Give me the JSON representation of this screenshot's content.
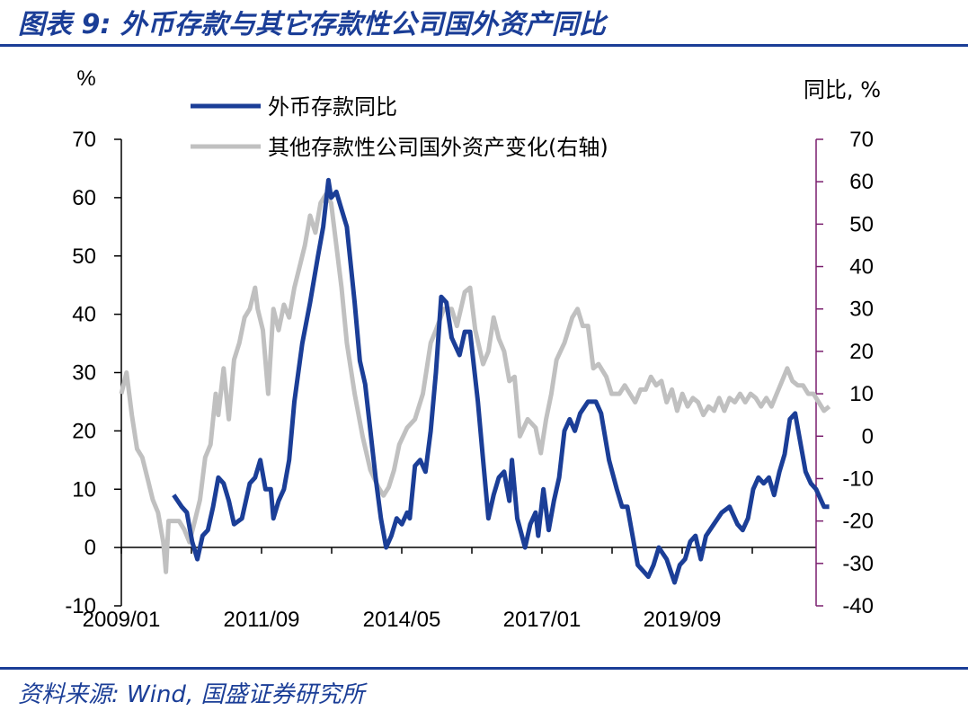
{
  "header": {
    "title": "图表 9: 外币存款与其它存款性公司国外资产同比"
  },
  "footer": {
    "source": "资料来源: Wind, 国盛证券研究所"
  },
  "chart_data": {
    "type": "line",
    "left_axis": {
      "unit_label": "%",
      "range": [
        -10,
        70
      ],
      "ticks": [
        "70",
        "60",
        "50",
        "40",
        "30",
        "20",
        "10",
        "0",
        "-10"
      ]
    },
    "right_axis": {
      "unit_label": "同比, %",
      "range": [
        -40,
        70
      ],
      "ticks": [
        "70",
        "60",
        "50",
        "40",
        "30",
        "20",
        "10",
        "0",
        "-10",
        "-20",
        "-30",
        "-40"
      ]
    },
    "x_ticks": [
      "2009/01",
      "2011/09",
      "2014/05",
      "2017/01",
      "2019/09"
    ],
    "x_range": [
      2009.0,
      2022.25
    ],
    "grid": false,
    "legend_position": "top",
    "series": [
      {
        "name": "外币存款同比",
        "axis": "left",
        "color": "#1b3e97",
        "points": [
          [
            2010.0,
            9
          ],
          [
            2010.15,
            7
          ],
          [
            2010.25,
            6
          ],
          [
            2010.35,
            1
          ],
          [
            2010.45,
            -2
          ],
          [
            2010.55,
            2
          ],
          [
            2010.65,
            3
          ],
          [
            2010.75,
            7
          ],
          [
            2010.85,
            12
          ],
          [
            2010.95,
            11
          ],
          [
            2011.05,
            8
          ],
          [
            2011.15,
            4
          ],
          [
            2011.3,
            5
          ],
          [
            2011.45,
            11
          ],
          [
            2011.55,
            12
          ],
          [
            2011.65,
            15
          ],
          [
            2011.75,
            10
          ],
          [
            2011.85,
            10
          ],
          [
            2011.9,
            5
          ],
          [
            2012.0,
            8
          ],
          [
            2012.1,
            10
          ],
          [
            2012.2,
            15
          ],
          [
            2012.3,
            25
          ],
          [
            2012.45,
            35
          ],
          [
            2012.6,
            42
          ],
          [
            2012.75,
            50
          ],
          [
            2012.85,
            55
          ],
          [
            2012.95,
            63
          ],
          [
            2013.0,
            60
          ],
          [
            2013.1,
            61
          ],
          [
            2013.2,
            58
          ],
          [
            2013.3,
            55
          ],
          [
            2013.45,
            42
          ],
          [
            2013.55,
            32
          ],
          [
            2013.65,
            28
          ],
          [
            2013.75,
            20
          ],
          [
            2013.85,
            12
          ],
          [
            2013.95,
            5
          ],
          [
            2014.05,
            0
          ],
          [
            2014.15,
            2
          ],
          [
            2014.25,
            5
          ],
          [
            2014.35,
            4
          ],
          [
            2014.45,
            6
          ],
          [
            2014.5,
            5
          ],
          [
            2014.6,
            14
          ],
          [
            2014.7,
            15
          ],
          [
            2014.8,
            13
          ],
          [
            2014.9,
            20
          ],
          [
            2015.0,
            30
          ],
          [
            2015.1,
            43
          ],
          [
            2015.2,
            42
          ],
          [
            2015.3,
            36
          ],
          [
            2015.45,
            33
          ],
          [
            2015.55,
            37
          ],
          [
            2015.65,
            37
          ],
          [
            2015.8,
            25
          ],
          [
            2015.9,
            15
          ],
          [
            2016.0,
            5
          ],
          [
            2016.1,
            9
          ],
          [
            2016.2,
            12
          ],
          [
            2016.3,
            13
          ],
          [
            2016.4,
            8
          ],
          [
            2016.45,
            15
          ],
          [
            2016.55,
            5
          ],
          [
            2016.7,
            0
          ],
          [
            2016.8,
            4
          ],
          [
            2016.9,
            6
          ],
          [
            2016.95,
            2
          ],
          [
            2017.05,
            10
          ],
          [
            2017.15,
            3
          ],
          [
            2017.25,
            8
          ],
          [
            2017.35,
            12
          ],
          [
            2017.45,
            20
          ],
          [
            2017.55,
            22
          ],
          [
            2017.65,
            20
          ],
          [
            2017.75,
            23
          ],
          [
            2017.9,
            25
          ],
          [
            2018.05,
            25
          ],
          [
            2018.15,
            23
          ],
          [
            2018.3,
            15
          ],
          [
            2018.45,
            10
          ],
          [
            2018.55,
            7
          ],
          [
            2018.65,
            7
          ],
          [
            2018.75,
            2
          ],
          [
            2018.85,
            -3
          ],
          [
            2018.95,
            -4
          ],
          [
            2019.05,
            -5
          ],
          [
            2019.15,
            -3
          ],
          [
            2019.25,
            0
          ],
          [
            2019.4,
            -2
          ],
          [
            2019.55,
            -6
          ],
          [
            2019.65,
            -3
          ],
          [
            2019.75,
            -2
          ],
          [
            2019.85,
            1
          ],
          [
            2019.95,
            2
          ],
          [
            2020.05,
            -2
          ],
          [
            2020.15,
            2
          ],
          [
            2020.3,
            4
          ],
          [
            2020.45,
            6
          ],
          [
            2020.6,
            7
          ],
          [
            2020.75,
            4
          ],
          [
            2020.85,
            3
          ],
          [
            2020.95,
            5
          ],
          [
            2021.05,
            10
          ],
          [
            2021.15,
            12
          ],
          [
            2021.25,
            11
          ],
          [
            2021.35,
            12
          ],
          [
            2021.45,
            9
          ],
          [
            2021.55,
            13
          ],
          [
            2021.65,
            16
          ],
          [
            2021.75,
            22
          ],
          [
            2021.85,
            23
          ],
          [
            2021.95,
            18
          ],
          [
            2022.05,
            13
          ],
          [
            2022.15,
            11
          ],
          [
            2022.25,
            10
          ],
          [
            2022.35,
            8
          ],
          [
            2022.4,
            7
          ],
          [
            2022.5,
            7
          ]
        ]
      },
      {
        "name": "其他存款性公司国外资产变化(右轴)",
        "axis": "right",
        "color": "#c0c0c0",
        "points": [
          [
            2009.0,
            10
          ],
          [
            2009.1,
            15
          ],
          [
            2009.2,
            5
          ],
          [
            2009.3,
            -3
          ],
          [
            2009.4,
            -5
          ],
          [
            2009.5,
            -10
          ],
          [
            2009.6,
            -15
          ],
          [
            2009.7,
            -18
          ],
          [
            2009.8,
            -25
          ],
          [
            2009.85,
            -32
          ],
          [
            2009.9,
            -20
          ],
          [
            2010.0,
            -20
          ],
          [
            2010.1,
            -20
          ],
          [
            2010.2,
            -22
          ],
          [
            2010.3,
            -25
          ],
          [
            2010.4,
            -20
          ],
          [
            2010.5,
            -15
          ],
          [
            2010.6,
            -5
          ],
          [
            2010.7,
            -2
          ],
          [
            2010.8,
            10
          ],
          [
            2010.85,
            5
          ],
          [
            2010.95,
            16
          ],
          [
            2011.05,
            4
          ],
          [
            2011.15,
            18
          ],
          [
            2011.25,
            22
          ],
          [
            2011.35,
            28
          ],
          [
            2011.45,
            30
          ],
          [
            2011.55,
            35
          ],
          [
            2011.6,
            30
          ],
          [
            2011.7,
            25
          ],
          [
            2011.8,
            10
          ],
          [
            2011.9,
            30
          ],
          [
            2012.0,
            25
          ],
          [
            2012.1,
            31
          ],
          [
            2012.2,
            28
          ],
          [
            2012.3,
            35
          ],
          [
            2012.4,
            40
          ],
          [
            2012.5,
            45
          ],
          [
            2012.6,
            52
          ],
          [
            2012.7,
            48
          ],
          [
            2012.8,
            55
          ],
          [
            2012.9,
            57
          ],
          [
            2013.0,
            55
          ],
          [
            2013.1,
            45
          ],
          [
            2013.2,
            35
          ],
          [
            2013.3,
            22
          ],
          [
            2013.45,
            10
          ],
          [
            2013.6,
            0
          ],
          [
            2013.75,
            -8
          ],
          [
            2013.9,
            -12
          ],
          [
            2014.0,
            -14
          ],
          [
            2014.1,
            -12
          ],
          [
            2014.2,
            -8
          ],
          [
            2014.3,
            -2
          ],
          [
            2014.45,
            2
          ],
          [
            2014.6,
            4
          ],
          [
            2014.75,
            10
          ],
          [
            2014.9,
            22
          ],
          [
            2015.0,
            25
          ],
          [
            2015.15,
            30
          ],
          [
            2015.3,
            30
          ],
          [
            2015.4,
            26
          ],
          [
            2015.55,
            34
          ],
          [
            2015.65,
            35
          ],
          [
            2015.75,
            25
          ],
          [
            2015.9,
            17
          ],
          [
            2016.0,
            20
          ],
          [
            2016.1,
            28
          ],
          [
            2016.2,
            23
          ],
          [
            2016.3,
            20
          ],
          [
            2016.4,
            13
          ],
          [
            2016.5,
            14
          ],
          [
            2016.6,
            0
          ],
          [
            2016.75,
            4
          ],
          [
            2016.9,
            2
          ],
          [
            2017.0,
            -4
          ],
          [
            2017.1,
            4
          ],
          [
            2017.2,
            10
          ],
          [
            2017.3,
            18
          ],
          [
            2017.45,
            22
          ],
          [
            2017.6,
            28
          ],
          [
            2017.7,
            30
          ],
          [
            2017.8,
            26
          ],
          [
            2017.9,
            26
          ],
          [
            2018.0,
            16
          ],
          [
            2018.1,
            17
          ],
          [
            2018.25,
            14
          ],
          [
            2018.35,
            10
          ],
          [
            2018.5,
            10
          ],
          [
            2018.6,
            12
          ],
          [
            2018.7,
            10
          ],
          [
            2018.8,
            8
          ],
          [
            2018.9,
            11
          ],
          [
            2019.0,
            11
          ],
          [
            2019.1,
            14
          ],
          [
            2019.2,
            12
          ],
          [
            2019.3,
            13
          ],
          [
            2019.4,
            8
          ],
          [
            2019.5,
            11
          ],
          [
            2019.6,
            6
          ],
          [
            2019.7,
            10
          ],
          [
            2019.8,
            7
          ],
          [
            2019.9,
            9
          ],
          [
            2020.0,
            8
          ],
          [
            2020.1,
            5
          ],
          [
            2020.2,
            7
          ],
          [
            2020.3,
            6
          ],
          [
            2020.4,
            9
          ],
          [
            2020.5,
            6
          ],
          [
            2020.6,
            9
          ],
          [
            2020.7,
            8
          ],
          [
            2020.8,
            10
          ],
          [
            2020.9,
            8
          ],
          [
            2021.0,
            10
          ],
          [
            2021.1,
            9
          ],
          [
            2021.2,
            7
          ],
          [
            2021.3,
            9
          ],
          [
            2021.4,
            7
          ],
          [
            2021.5,
            10
          ],
          [
            2021.6,
            13
          ],
          [
            2021.7,
            16
          ],
          [
            2021.8,
            13
          ],
          [
            2021.9,
            12
          ],
          [
            2022.0,
            12
          ],
          [
            2022.1,
            10
          ],
          [
            2022.2,
            10
          ],
          [
            2022.3,
            8
          ],
          [
            2022.4,
            6
          ],
          [
            2022.5,
            7
          ]
        ]
      }
    ]
  }
}
